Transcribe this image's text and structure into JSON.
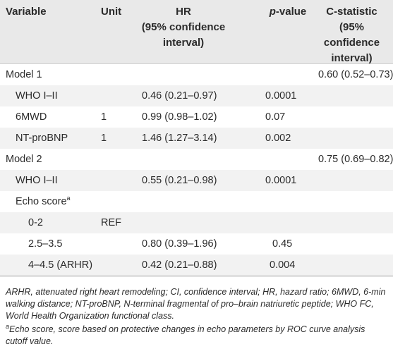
{
  "headers": {
    "variable": "Variable",
    "unit": "Unit",
    "hr_line1": "HR",
    "hr_line2": "(95% confidence",
    "hr_line3": "interval)",
    "p_italic": "p",
    "p_rest": "-value",
    "c_line1": "C-statistic",
    "c_line2": "(95% confidence",
    "c_line3": "interval)"
  },
  "rows": [
    {
      "variable": "Model 1",
      "unit": "",
      "hr": "",
      "p": "",
      "c": "0.60 (0.52–0.73)",
      "sup": ""
    },
    {
      "variable": "WHO I–II",
      "unit": "",
      "hr": "0.46 (0.21–0.97)",
      "p": "0.0001",
      "c": "",
      "sup": ""
    },
    {
      "variable": "6MWD",
      "unit": "1",
      "hr": "0.99 (0.98–1.02)",
      "p": "0.07",
      "c": "",
      "sup": ""
    },
    {
      "variable": "NT-proBNP",
      "unit": "1",
      "hr": "1.46 (1.27–3.14)",
      "p": "0.002",
      "c": "",
      "sup": ""
    },
    {
      "variable": "Model 2",
      "unit": "",
      "hr": "",
      "p": "",
      "c": "0.75 (0.69–0.82)",
      "sup": ""
    },
    {
      "variable": "WHO I–II",
      "unit": "",
      "hr": "0.55 (0.21–0.98)",
      "p": "0.0001",
      "c": "",
      "sup": ""
    },
    {
      "variable": "Echo score",
      "unit": "",
      "hr": "",
      "p": "",
      "c": "",
      "sup": "a"
    },
    {
      "variable": "0-2",
      "unit": "REF",
      "hr": "",
      "p": "",
      "c": "",
      "sup": ""
    },
    {
      "variable": "2.5–3.5",
      "unit": "",
      "hr": "0.80 (0.39–1.96)",
      "p": "0.45",
      "c": "",
      "sup": ""
    },
    {
      "variable": "4–4.5 (ARHR)",
      "unit": "",
      "hr": "0.42 (0.21–0.88)",
      "p": "0.004",
      "c": "",
      "sup": ""
    }
  ],
  "notes": {
    "abbrev": "ARHR, attenuated right heart remodeling; CI, confidence interval; HR, hazard ratio; 6MWD, 6-min walking distance; NT-proBNP, N-terminal fragmental of pro–brain natriuretic peptide; WHO FC, World Health Organization functional class.",
    "echo_sup": "a",
    "echo": "Echo score, score based on protective changes in echo parameters by ROC curve analysis cutoff value."
  }
}
